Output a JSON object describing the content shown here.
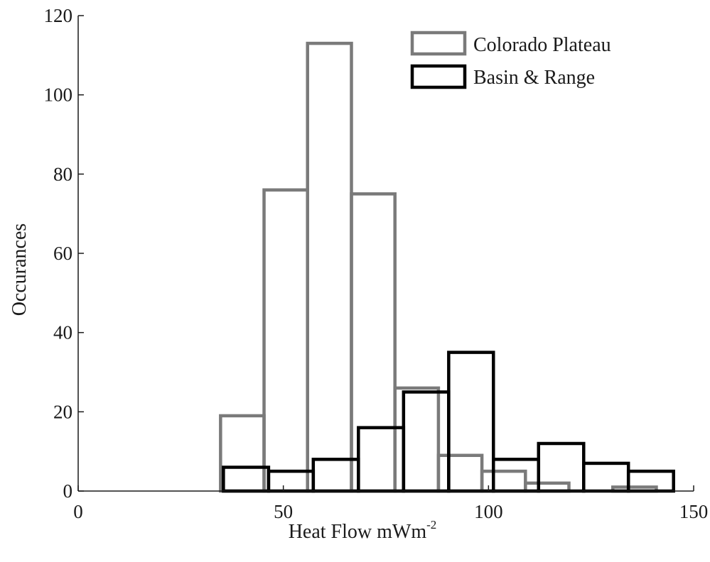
{
  "chart_data": {
    "type": "bar",
    "xlabel": "Heat Flow mWm",
    "xlabel_superscript": "-2",
    "ylabel": "Occurances",
    "xlim": [
      0,
      150
    ],
    "ylim": [
      0,
      120
    ],
    "xticks": [
      0,
      50,
      100,
      150
    ],
    "yticks": [
      0,
      20,
      40,
      60,
      80,
      100,
      120
    ],
    "legend_position": "top-right",
    "grid": false,
    "series": [
      {
        "name": "Colorado Plateau",
        "color": "#7a7a7a",
        "bins": [
          {
            "x0": 34.7,
            "x1": 45.3,
            "value": 19
          },
          {
            "x0": 45.3,
            "x1": 55.9,
            "value": 76
          },
          {
            "x0": 55.9,
            "x1": 66.6,
            "value": 113
          },
          {
            "x0": 66.6,
            "x1": 77.2,
            "value": 75
          },
          {
            "x0": 77.2,
            "x1": 87.8,
            "value": 26
          },
          {
            "x0": 87.8,
            "x1": 98.4,
            "value": 9
          },
          {
            "x0": 98.4,
            "x1": 109.0,
            "value": 5
          },
          {
            "x0": 109.0,
            "x1": 119.6,
            "value": 2
          },
          {
            "x0": 119.6,
            "x1": 130.3,
            "value": 0
          },
          {
            "x0": 130.3,
            "x1": 140.9,
            "value": 1
          }
        ]
      },
      {
        "name": "Basin & Range",
        "color": "#000000",
        "bins": [
          {
            "x0": 35.4,
            "x1": 46.4,
            "value": 6
          },
          {
            "x0": 46.4,
            "x1": 57.3,
            "value": 5
          },
          {
            "x0": 57.3,
            "x1": 68.3,
            "value": 8
          },
          {
            "x0": 68.3,
            "x1": 79.3,
            "value": 16
          },
          {
            "x0": 79.3,
            "x1": 90.3,
            "value": 25
          },
          {
            "x0": 90.3,
            "x1": 101.2,
            "value": 35
          },
          {
            "x0": 101.2,
            "x1": 112.2,
            "value": 8
          },
          {
            "x0": 112.2,
            "x1": 123.2,
            "value": 12
          },
          {
            "x0": 123.2,
            "x1": 134.1,
            "value": 7
          },
          {
            "x0": 134.1,
            "x1": 145.1,
            "value": 5
          }
        ]
      }
    ]
  }
}
